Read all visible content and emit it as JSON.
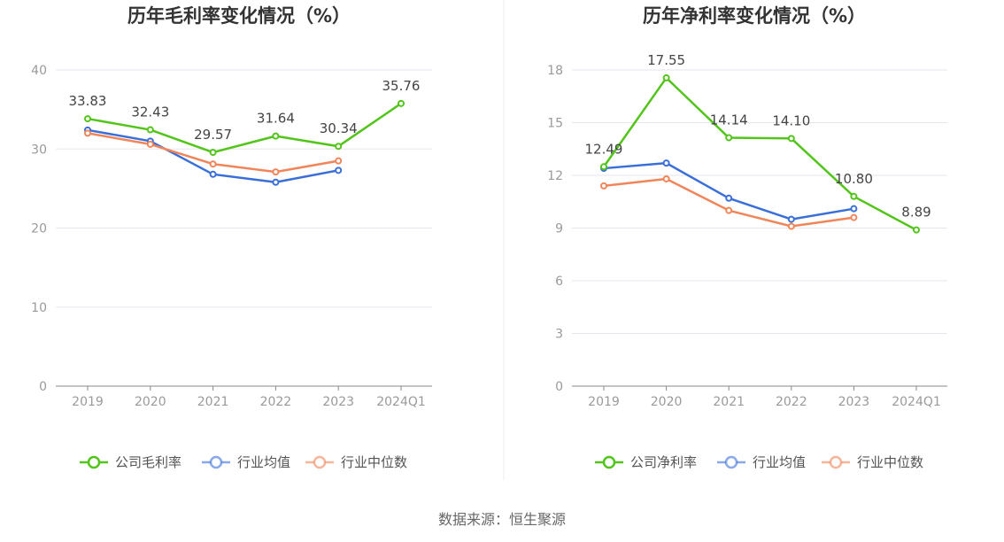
{
  "source": "数据来源：恒生聚源",
  "colors": {
    "company": "#52c41a",
    "industry_avg": "#3b6fd8",
    "industry_median": "#f0855a",
    "grid": "#e6e6ee",
    "axis": "#888888"
  },
  "chart_data": [
    {
      "type": "line",
      "title": "历年毛利率变化情况（%）",
      "categories": [
        "2019",
        "2020",
        "2021",
        "2022",
        "2023",
        "2024Q1"
      ],
      "ylim": [
        0,
        40
      ],
      "yticks": [
        0,
        10,
        20,
        30,
        40
      ],
      "grid": true,
      "legend_position": "bottom",
      "series": [
        {
          "name": "公司毛利率",
          "color": "#52c41a",
          "labeled": true,
          "values": [
            33.83,
            32.43,
            29.57,
            31.64,
            30.34,
            35.76
          ],
          "labels": [
            "33.83",
            "32.43",
            "29.57",
            "31.64",
            "30.34",
            "35.76"
          ]
        },
        {
          "name": "行业均值",
          "color": "#3b6fd8",
          "labeled": false,
          "values": [
            32.4,
            31.0,
            26.8,
            25.8,
            27.3,
            null
          ]
        },
        {
          "name": "行业中位数",
          "color": "#f0855a",
          "labeled": false,
          "values": [
            32.0,
            30.6,
            28.1,
            27.1,
            28.5,
            null
          ]
        }
      ]
    },
    {
      "type": "line",
      "title": "历年净利率变化情况（%）",
      "categories": [
        "2019",
        "2020",
        "2021",
        "2022",
        "2023",
        "2024Q1"
      ],
      "ylim": [
        0,
        18
      ],
      "yticks": [
        0,
        3,
        6,
        9,
        12,
        15,
        18
      ],
      "grid": true,
      "legend_position": "bottom",
      "series": [
        {
          "name": "公司净利率",
          "color": "#52c41a",
          "labeled": true,
          "values": [
            12.49,
            17.55,
            14.14,
            14.1,
            10.8,
            8.89
          ],
          "labels": [
            "12.49",
            "17.55",
            "14.14",
            "14.10",
            "10.80",
            "8.89"
          ]
        },
        {
          "name": "行业均值",
          "color": "#3b6fd8",
          "labeled": false,
          "values": [
            12.4,
            12.7,
            10.7,
            9.5,
            10.1,
            null
          ]
        },
        {
          "name": "行业中位数",
          "color": "#f0855a",
          "labeled": false,
          "values": [
            11.4,
            11.8,
            10.0,
            9.1,
            9.6,
            null
          ]
        }
      ]
    }
  ]
}
